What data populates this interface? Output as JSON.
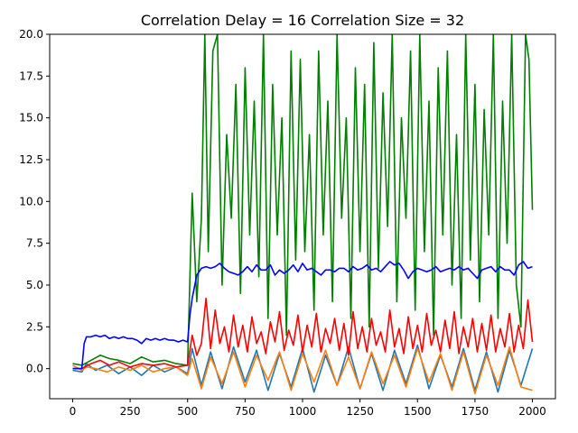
{
  "chart_data": {
    "type": "line",
    "title": "Correlation Delay = 16 Correlation Size = 32",
    "xlabel": "",
    "ylabel": "",
    "xlim": [
      -100,
      2100
    ],
    "ylim": [
      -1.8,
      20.0
    ],
    "grid": false,
    "x_ticks": [
      0,
      250,
      500,
      750,
      1000,
      1250,
      1500,
      1750,
      2000
    ],
    "x_tick_labels": [
      "0",
      "250",
      "500",
      "750",
      "1000",
      "1250",
      "1500",
      "1750",
      "2000"
    ],
    "y_ticks": [
      0.0,
      2.5,
      5.0,
      7.5,
      10.0,
      12.5,
      15.0,
      17.5,
      20.0
    ],
    "y_tick_labels": [
      "0.0",
      "2.5",
      "5.0",
      "7.5",
      "10.0",
      "12.5",
      "15.0",
      "17.5",
      "20.0"
    ],
    "series": [
      {
        "color": "#1f77b4",
        "x": [
          0,
          40,
          60,
          100,
          150,
          200,
          250,
          300,
          350,
          400,
          450,
          500,
          520,
          560,
          600,
          650,
          700,
          750,
          800,
          850,
          900,
          950,
          1000,
          1050,
          1100,
          1150,
          1200,
          1250,
          1300,
          1350,
          1400,
          1450,
          1500,
          1550,
          1600,
          1650,
          1700,
          1750,
          1800,
          1850,
          1900,
          1950,
          2000
        ],
        "values": [
          -0.1,
          -0.2,
          0.3,
          -0.1,
          0.2,
          -0.3,
          0.1,
          -0.4,
          0.2,
          -0.2,
          0.1,
          -0.3,
          1.2,
          -1.0,
          1.0,
          -1.2,
          1.3,
          -0.8,
          1.1,
          -1.3,
          0.9,
          -1.1,
          1.2,
          -1.4,
          0.8,
          -1.0,
          1.3,
          -1.2,
          0.9,
          -1.3,
          1.1,
          -0.9,
          1.4,
          -1.2,
          0.8,
          -1.1,
          1.2,
          -1.3,
          1.0,
          -1.4,
          1.1,
          -1.0,
          1.2
        ]
      },
      {
        "color": "#ff7f0e",
        "x": [
          0,
          40,
          60,
          100,
          150,
          200,
          250,
          300,
          350,
          400,
          450,
          500,
          520,
          560,
          600,
          650,
          700,
          750,
          800,
          850,
          900,
          950,
          1000,
          1050,
          1100,
          1150,
          1200,
          1250,
          1300,
          1350,
          1400,
          1450,
          1500,
          1550,
          1600,
          1650,
          1700,
          1750,
          1800,
          1850,
          1900,
          1950,
          2000
        ],
        "values": [
          0.2,
          -0.1,
          0.1,
          0.0,
          -0.2,
          0.1,
          -0.1,
          0.2,
          -0.2,
          0.0,
          0.1,
          -0.4,
          0.6,
          -1.2,
          0.7,
          -0.9,
          1.0,
          -1.1,
          0.8,
          -0.7,
          1.0,
          -1.3,
          0.9,
          -0.8,
          1.1,
          -1.0,
          0.7,
          -1.2,
          1.0,
          -0.9,
          0.8,
          -1.1,
          1.2,
          -0.8,
          0.9,
          -1.3,
          1.0,
          -1.5,
          0.8,
          -1.0,
          1.3,
          -1.1,
          -1.3
        ]
      },
      {
        "color": "#008000",
        "x": [
          0,
          40,
          80,
          120,
          160,
          200,
          250,
          300,
          350,
          400,
          450,
          500,
          520,
          540,
          560,
          575,
          590,
          610,
          630,
          650,
          670,
          690,
          710,
          730,
          750,
          770,
          790,
          810,
          830,
          850,
          870,
          890,
          910,
          930,
          950,
          970,
          990,
          1010,
          1030,
          1050,
          1070,
          1090,
          1110,
          1130,
          1150,
          1170,
          1190,
          1210,
          1230,
          1250,
          1270,
          1290,
          1310,
          1330,
          1350,
          1370,
          1390,
          1410,
          1430,
          1450,
          1470,
          1490,
          1510,
          1530,
          1550,
          1570,
          1590,
          1610,
          1630,
          1650,
          1670,
          1690,
          1710,
          1730,
          1750,
          1770,
          1790,
          1810,
          1830,
          1850,
          1870,
          1890,
          1910,
          1930,
          1950,
          1970,
          1985,
          2000
        ],
        "values": [
          0.3,
          0.2,
          0.5,
          0.8,
          0.6,
          0.5,
          0.3,
          0.7,
          0.4,
          0.5,
          0.3,
          0.2,
          10.5,
          4.0,
          9.0,
          20.0,
          7.0,
          19.0,
          20.0,
          5.0,
          14.0,
          9.0,
          17.0,
          4.5,
          18.0,
          8.0,
          16.0,
          5.5,
          20.0,
          3.0,
          17.0,
          8.0,
          15.0,
          2.0,
          19.0,
          6.5,
          18.5,
          7.0,
          14.0,
          3.5,
          19.0,
          8.0,
          16.0,
          4.0,
          20.0,
          9.0,
          15.0,
          3.0,
          18.0,
          7.0,
          17.0,
          2.5,
          19.5,
          6.0,
          16.5,
          8.5,
          20.0,
          4.0,
          15.0,
          9.0,
          19.0,
          3.5,
          20.0,
          7.0,
          16.0,
          2.0,
          18.0,
          8.0,
          19.0,
          5.0,
          14.0,
          3.0,
          20.0,
          6.5,
          17.0,
          4.0,
          15.5,
          8.0,
          20.0,
          3.0,
          16.0,
          7.5,
          20.0,
          5.0,
          2.5,
          20.0,
          18.5,
          9.5
        ]
      },
      {
        "color": "#ff0000",
        "x": [
          0,
          40,
          80,
          120,
          160,
          200,
          250,
          300,
          350,
          400,
          450,
          500,
          520,
          540,
          560,
          580,
          600,
          620,
          640,
          660,
          680,
          700,
          720,
          740,
          760,
          780,
          800,
          820,
          840,
          860,
          880,
          900,
          920,
          940,
          960,
          980,
          1000,
          1020,
          1040,
          1060,
          1080,
          1100,
          1120,
          1140,
          1160,
          1180,
          1200,
          1220,
          1240,
          1260,
          1280,
          1300,
          1320,
          1340,
          1360,
          1380,
          1400,
          1420,
          1440,
          1460,
          1480,
          1500,
          1520,
          1540,
          1560,
          1580,
          1600,
          1620,
          1640,
          1660,
          1680,
          1700,
          1720,
          1740,
          1760,
          1780,
          1800,
          1820,
          1840,
          1860,
          1880,
          1900,
          1920,
          1940,
          1960,
          1980,
          2000
        ],
        "values": [
          0.0,
          0.0,
          0.3,
          0.5,
          0.2,
          0.4,
          0.1,
          0.3,
          0.2,
          0.3,
          0.1,
          0.2,
          2.0,
          0.8,
          1.5,
          4.2,
          1.2,
          3.5,
          1.5,
          2.5,
          1.0,
          3.2,
          1.3,
          2.6,
          1.0,
          3.1,
          1.5,
          2.2,
          0.9,
          2.8,
          1.6,
          3.4,
          1.1,
          2.3,
          1.4,
          3.2,
          1.0,
          2.6,
          1.3,
          3.3,
          1.0,
          2.4,
          1.5,
          3.0,
          1.1,
          2.7,
          0.8,
          3.4,
          1.2,
          2.5,
          1.0,
          3.0,
          1.4,
          2.2,
          1.0,
          3.5,
          1.3,
          2.4,
          0.9,
          3.1,
          1.2,
          2.6,
          1.0,
          3.3,
          1.4,
          2.3,
          1.0,
          2.9,
          1.2,
          3.4,
          0.9,
          2.5,
          1.3,
          3.0,
          1.0,
          2.7,
          1.1,
          3.2,
          1.0,
          2.4,
          1.3,
          3.3,
          1.0,
          2.6,
          1.2,
          4.1,
          1.6
        ]
      },
      {
        "color": "#0000ff",
        "x": [
          0,
          20,
          40,
          50,
          60,
          80,
          100,
          120,
          140,
          160,
          180,
          200,
          220,
          240,
          260,
          280,
          300,
          320,
          340,
          360,
          380,
          400,
          420,
          440,
          460,
          480,
          500,
          510,
          520,
          540,
          560,
          580,
          600,
          620,
          640,
          660,
          680,
          700,
          720,
          740,
          760,
          780,
          800,
          820,
          840,
          860,
          880,
          900,
          920,
          940,
          960,
          980,
          1000,
          1020,
          1040,
          1060,
          1080,
          1100,
          1120,
          1140,
          1160,
          1180,
          1200,
          1220,
          1240,
          1260,
          1280,
          1300,
          1320,
          1340,
          1360,
          1380,
          1400,
          1420,
          1440,
          1460,
          1480,
          1500,
          1520,
          1540,
          1560,
          1580,
          1600,
          1620,
          1640,
          1660,
          1680,
          1700,
          1720,
          1740,
          1760,
          1780,
          1800,
          1820,
          1840,
          1860,
          1880,
          1900,
          1920,
          1940,
          1960,
          1980,
          2000
        ],
        "values": [
          0.0,
          0.0,
          0.0,
          1.5,
          1.9,
          1.9,
          2.0,
          1.9,
          2.0,
          1.8,
          1.9,
          1.8,
          1.9,
          1.8,
          1.8,
          1.7,
          1.5,
          1.8,
          1.7,
          1.8,
          1.7,
          1.8,
          1.7,
          1.7,
          1.6,
          1.7,
          1.6,
          3.2,
          4.2,
          5.6,
          6.0,
          6.1,
          6.0,
          6.1,
          6.3,
          6.0,
          5.8,
          5.7,
          5.6,
          5.8,
          6.1,
          5.8,
          6.2,
          5.9,
          5.9,
          6.2,
          5.6,
          5.9,
          5.7,
          5.9,
          6.2,
          5.8,
          6.3,
          5.9,
          6.0,
          5.8,
          5.6,
          5.9,
          5.9,
          5.8,
          6.0,
          6.0,
          5.8,
          6.1,
          5.9,
          6.0,
          6.2,
          5.9,
          6.0,
          5.8,
          6.1,
          6.4,
          6.2,
          6.3,
          5.9,
          5.4,
          5.8,
          6.0,
          5.9,
          5.8,
          5.9,
          6.1,
          5.8,
          5.9,
          6.0,
          5.9,
          6.1,
          5.9,
          6.0,
          5.7,
          5.4,
          5.9,
          6.0,
          6.1,
          5.8,
          6.1,
          5.9,
          5.9,
          5.6,
          6.2,
          6.4,
          6.0,
          6.1
        ]
      }
    ]
  }
}
